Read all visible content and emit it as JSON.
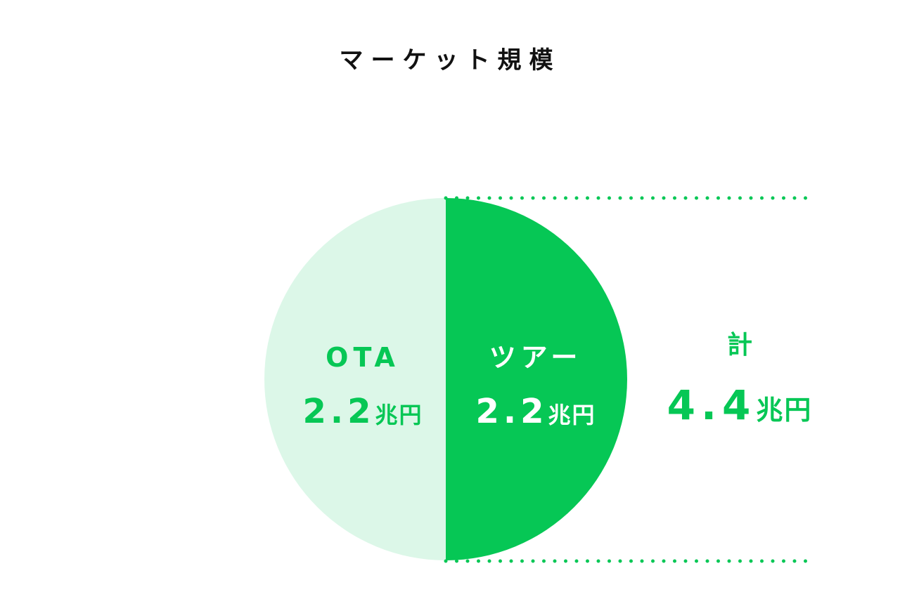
{
  "chart_data": {
    "type": "pie",
    "title": "マーケット規模",
    "slices": [
      {
        "label": "OTA",
        "value": 2.2,
        "value_text": "2.2",
        "unit": "兆円",
        "color": "#dcf7e8"
      },
      {
        "label": "ツアー",
        "value": 2.2,
        "value_text": "2.2",
        "unit": "兆円",
        "color": "#06c755"
      }
    ],
    "total": {
      "label": "計",
      "value": 4.4,
      "value_text": "4.4",
      "unit": "兆円"
    }
  },
  "colors": {
    "accent": "#06c755",
    "light": "#dcf7e8",
    "title": "#111111"
  }
}
